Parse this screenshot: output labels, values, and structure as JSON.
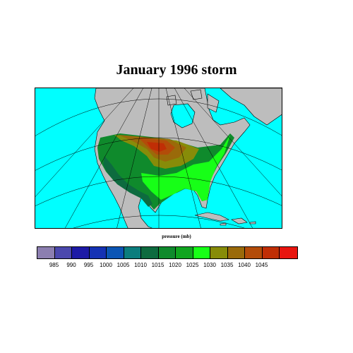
{
  "title": "January 1996 storm",
  "map": {
    "caption": "pressure (mb)",
    "colors": {
      "ocean": "#00ffff",
      "land": "#bdbdbd",
      "grid": "#000000"
    }
  },
  "legend": {
    "colors": [
      "#8c7fb0",
      "#4b48ad",
      "#1d1aa6",
      "#1532b4",
      "#0b55b4",
      "#0b7d7d",
      "#0d6b3f",
      "#0f8a2c",
      "#10a51f",
      "#17ff17",
      "#878c09",
      "#9a6a0a",
      "#b34c09",
      "#c02e05",
      "#e8150f"
    ],
    "labels": [
      "985",
      "990",
      "995",
      "1000",
      "1005",
      "1010",
      "1015",
      "1020",
      "1025",
      "1030",
      "1035",
      "1040",
      "1045"
    ]
  }
}
